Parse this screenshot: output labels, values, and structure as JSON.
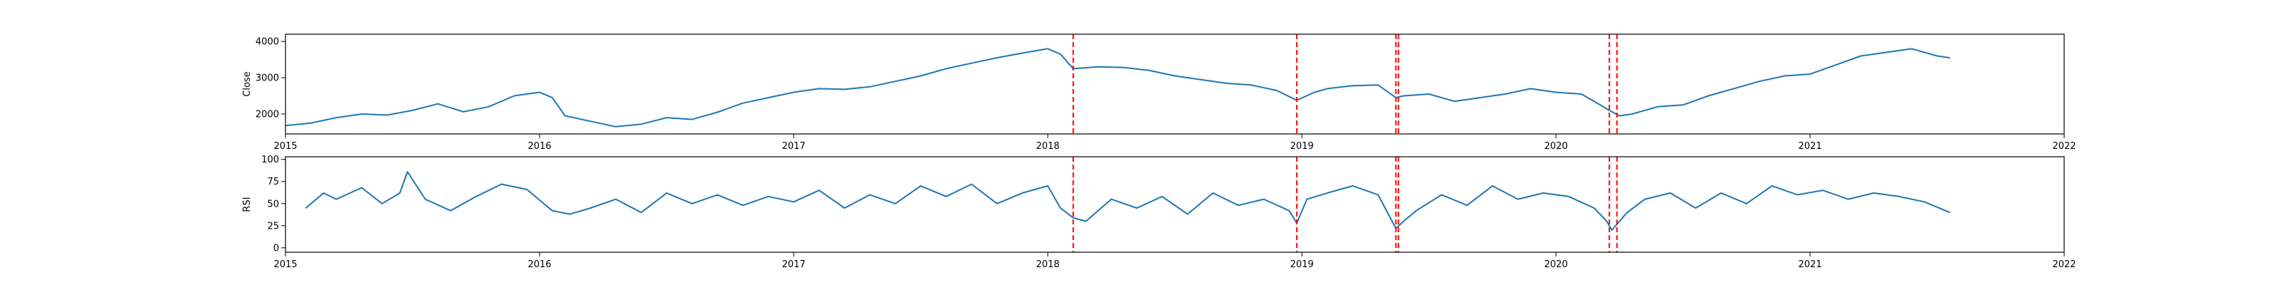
{
  "chart_data": [
    {
      "type": "line",
      "ylabel": "Close",
      "xlim": [
        2015.0,
        2022.0
      ],
      "ylim": [
        1450,
        4200
      ],
      "yticks": [
        2000,
        3000,
        4000
      ],
      "xticks": [
        2015,
        2016,
        2017,
        2018,
        2019,
        2020,
        2021,
        2022
      ],
      "xtick_labels": [
        "2015",
        "2016",
        "2017",
        "2018",
        "2019",
        "2020",
        "2021",
        "2022"
      ],
      "line_color": "#1f77b4",
      "vline_color": "#ff0000",
      "vlines": [
        2018.1,
        2018.98,
        2019.37,
        2019.38,
        2020.21,
        2020.24
      ],
      "series": [
        {
          "x": [
            2015.0,
            2015.1,
            2015.2,
            2015.3,
            2015.4,
            2015.5,
            2015.6,
            2015.7,
            2015.8,
            2015.9,
            2016.0,
            2016.05,
            2016.1,
            2016.2,
            2016.3,
            2016.4,
            2016.5,
            2016.6,
            2016.7,
            2016.8,
            2016.9,
            2017.0,
            2017.1,
            2017.2,
            2017.3,
            2017.4,
            2017.5,
            2017.6,
            2017.7,
            2017.8,
            2017.9,
            2018.0,
            2018.05,
            2018.1,
            2018.2,
            2018.3,
            2018.4,
            2018.5,
            2018.6,
            2018.7,
            2018.8,
            2018.9,
            2018.98,
            2019.05,
            2019.1,
            2019.2,
            2019.3,
            2019.37,
            2019.4,
            2019.5,
            2019.6,
            2019.7,
            2019.8,
            2019.9,
            2020.0,
            2020.1,
            2020.15,
            2020.21,
            2020.25,
            2020.3,
            2020.4,
            2020.5,
            2020.6,
            2020.7,
            2020.8,
            2020.9,
            2021.0,
            2021.1,
            2021.2,
            2021.3,
            2021.4,
            2021.5,
            2021.55
          ],
          "y": [
            1680,
            1750,
            1900,
            2000,
            1970,
            2100,
            2280,
            2060,
            2200,
            2500,
            2600,
            2450,
            1950,
            1800,
            1650,
            1720,
            1900,
            1850,
            2050,
            2300,
            2450,
            2600,
            2700,
            2680,
            2750,
            2900,
            3050,
            3250,
            3400,
            3550,
            3680,
            3800,
            3650,
            3250,
            3300,
            3280,
            3200,
            3050,
            2950,
            2850,
            2800,
            2650,
            2380,
            2600,
            2700,
            2780,
            2800,
            2450,
            2500,
            2550,
            2350,
            2450,
            2550,
            2700,
            2600,
            2550,
            2350,
            2100,
            1950,
            2000,
            2200,
            2250,
            2500,
            2700,
            2900,
            3050,
            3100,
            3350,
            3600,
            3700,
            3800,
            3600,
            3550
          ]
        }
      ]
    },
    {
      "type": "line",
      "ylabel": "RSI",
      "xlim": [
        2015.0,
        2022.0
      ],
      "ylim": [
        -5,
        103
      ],
      "yticks": [
        0,
        25,
        50,
        75,
        100
      ],
      "xticks": [
        2015,
        2016,
        2017,
        2018,
        2019,
        2020,
        2021,
        2022
      ],
      "xtick_labels": [
        "2015",
        "2016",
        "2017",
        "2018",
        "2019",
        "2020",
        "2021",
        "2022"
      ],
      "line_color": "#1f77b4",
      "vline_color": "#ff0000",
      "vlines": [
        2018.1,
        2018.98,
        2019.37,
        2019.38,
        2020.21,
        2020.24
      ],
      "series": [
        {
          "x": [
            2015.08,
            2015.15,
            2015.2,
            2015.3,
            2015.38,
            2015.45,
            2015.48,
            2015.55,
            2015.65,
            2015.75,
            2015.85,
            2015.95,
            2016.05,
            2016.12,
            2016.2,
            2016.3,
            2016.4,
            2016.5,
            2016.6,
            2016.7,
            2016.8,
            2016.9,
            2017.0,
            2017.1,
            2017.2,
            2017.3,
            2017.4,
            2017.5,
            2017.6,
            2017.7,
            2017.8,
            2017.9,
            2018.0,
            2018.05,
            2018.1,
            2018.15,
            2018.25,
            2018.35,
            2018.45,
            2018.55,
            2018.65,
            2018.75,
            2018.85,
            2018.95,
            2018.98,
            2019.02,
            2019.1,
            2019.2,
            2019.3,
            2019.37,
            2019.4,
            2019.45,
            2019.55,
            2019.65,
            2019.75,
            2019.85,
            2019.95,
            2020.05,
            2020.15,
            2020.2,
            2020.22,
            2020.28,
            2020.35,
            2020.45,
            2020.55,
            2020.65,
            2020.75,
            2020.85,
            2020.95,
            2021.05,
            2021.15,
            2021.25,
            2021.35,
            2021.45,
            2021.55
          ],
          "y": [
            45,
            62,
            55,
            68,
            50,
            62,
            86,
            55,
            42,
            58,
            72,
            66,
            42,
            38,
            45,
            55,
            40,
            62,
            50,
            60,
            48,
            58,
            52,
            65,
            45,
            60,
            50,
            70,
            58,
            72,
            50,
            62,
            70,
            45,
            34,
            30,
            55,
            45,
            58,
            38,
            62,
            48,
            55,
            42,
            28,
            55,
            62,
            70,
            60,
            22,
            30,
            42,
            60,
            48,
            70,
            55,
            62,
            58,
            45,
            30,
            20,
            40,
            55,
            62,
            45,
            62,
            50,
            70,
            60,
            65,
            55,
            62,
            58,
            52,
            40
          ]
        }
      ]
    }
  ]
}
